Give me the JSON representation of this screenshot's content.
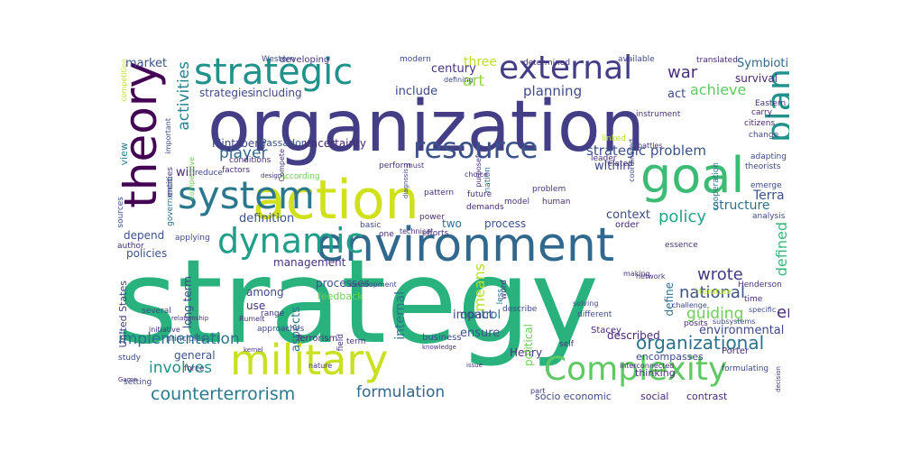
{
  "cloud": {
    "words": [
      {
        "text": "strategy",
        "color": "#2ab27e"
      },
      {
        "text": "organization",
        "color": "#433e85"
      },
      {
        "text": "environment",
        "color": "#31688e"
      },
      {
        "text": "action",
        "color": "#d0e11c"
      },
      {
        "text": "goal",
        "color": "#3cbb75"
      },
      {
        "text": "military",
        "color": "#c8e020"
      },
      {
        "text": "system",
        "color": "#2a788e"
      },
      {
        "text": "theory",
        "color": "#440154"
      },
      {
        "text": "strategic",
        "color": "#21918c"
      },
      {
        "text": "external",
        "color": "#433e85"
      },
      {
        "text": "resource",
        "color": "#3b528b"
      },
      {
        "text": "dynamic",
        "color": "#1f9e89"
      },
      {
        "text": "Complexity",
        "color": "#5ec962"
      },
      {
        "text": "plan",
        "color": "#21918c"
      },
      {
        "text": "counterterrorism",
        "color": "#2a788e"
      },
      {
        "text": "organizational",
        "color": "#2c728e"
      },
      {
        "text": "implementation",
        "color": "#2c728e"
      },
      {
        "text": "activities",
        "color": "#26828e"
      },
      {
        "text": "strategic problem",
        "color": "#3b528b"
      },
      {
        "text": "formulation",
        "color": "#31688e"
      },
      {
        "text": "involves",
        "color": "#21918c"
      },
      {
        "text": "national",
        "color": "#3b528b"
      },
      {
        "text": "achieve",
        "color": "#5ec962"
      },
      {
        "text": "player",
        "color": "#31688e"
      },
      {
        "text": "policy",
        "color": "#20a486"
      },
      {
        "text": "wrote",
        "color": "#443983"
      },
      {
        "text": "guiding",
        "color": "#6ece58"
      },
      {
        "text": "war",
        "color": "#472d7b"
      },
      {
        "text": "end",
        "color": "#482878"
      },
      {
        "text": "defined",
        "color": "#35b779"
      },
      {
        "text": "art",
        "color": "#90d743"
      },
      {
        "text": "Symbiotic",
        "color": "#31688e"
      },
      {
        "text": "planning",
        "color": "#3e4989"
      },
      {
        "text": "means",
        "color": "#b5de2b"
      },
      {
        "text": "market",
        "color": "#3b528b"
      },
      {
        "text": "structure",
        "color": "#2c728e"
      },
      {
        "text": "definition",
        "color": "#3b528b"
      },
      {
        "text": "Mintzberg",
        "color": "#3e4989"
      },
      {
        "text": "uncertainty",
        "color": "#482878"
      },
      {
        "text": "Passador",
        "color": "#3b528b"
      },
      {
        "text": "Terra",
        "color": "#3b528b"
      },
      {
        "text": "survival",
        "color": "#482878"
      },
      {
        "text": "strategies",
        "color": "#3e4989"
      },
      {
        "text": "including",
        "color": "#3e4989"
      },
      {
        "text": "act",
        "color": "#3e4989"
      },
      {
        "text": "include",
        "color": "#3e4989"
      },
      {
        "text": "three",
        "color": "#bddf26"
      },
      {
        "text": "century",
        "color": "#46327e"
      },
      {
        "text": "within",
        "color": "#3e4989"
      },
      {
        "text": "will",
        "color": "#482878"
      },
      {
        "text": "view",
        "color": "#26828e"
      },
      {
        "text": "context",
        "color": "#3e4989"
      },
      {
        "text": "two",
        "color": "#2c728e"
      },
      {
        "text": "process",
        "color": "#3b528b"
      },
      {
        "text": "depend",
        "color": "#3b528b"
      },
      {
        "text": "policies",
        "color": "#3b528b"
      },
      {
        "text": "management",
        "color": "#46327e"
      },
      {
        "text": "among",
        "color": "#3e4989"
      },
      {
        "text": "processes",
        "color": "#3b528b"
      },
      {
        "text": "feedback",
        "color": "#6ece58"
      },
      {
        "text": "use",
        "color": "#46327e"
      },
      {
        "text": "control",
        "color": "#2c728e"
      },
      {
        "text": "ensure",
        "color": "#3b528b"
      },
      {
        "text": "impact",
        "color": "#3e4989"
      },
      {
        "text": "business",
        "color": "#3e4989"
      },
      {
        "text": "Henry",
        "color": "#46327e"
      },
      {
        "text": "described",
        "color": "#482878"
      },
      {
        "text": "environmental",
        "color": "#3e4989"
      },
      {
        "text": "internal",
        "color": "#2c728e"
      },
      {
        "text": "aspects",
        "color": "#2c728e"
      },
      {
        "text": "long term",
        "color": "#3e4989"
      },
      {
        "text": "general",
        "color": "#3b528b"
      },
      {
        "text": "United States",
        "color": "#433e85"
      },
      {
        "text": "Terrorism",
        "color": "#472d7b"
      },
      {
        "text": "political",
        "color": "#6ece58"
      },
      {
        "text": "socio economic",
        "color": "#3e4989"
      },
      {
        "text": "social",
        "color": "#482878"
      },
      {
        "text": "contrast",
        "color": "#472d7b"
      },
      {
        "text": "define",
        "color": "#2c728e"
      },
      {
        "text": "order",
        "color": "#482878"
      },
      {
        "text": "Stacey",
        "color": "#472d7b"
      },
      {
        "text": "encompasses",
        "color": "#3e4989"
      },
      {
        "text": "thinking",
        "color": "#472d7b"
      },
      {
        "text": "Porter",
        "color": "#482878"
      },
      {
        "text": "developing",
        "color": "#46327e"
      },
      {
        "text": "Western",
        "color": "#3e4989"
      },
      {
        "text": "modern",
        "color": "#3e4989"
      },
      {
        "text": "determined",
        "color": "#46327e"
      },
      {
        "text": "available",
        "color": "#3e4989"
      },
      {
        "text": "translated",
        "color": "#482878"
      },
      {
        "text": "defining",
        "color": "#3e4989"
      },
      {
        "text": "Eastern",
        "color": "#46327e"
      },
      {
        "text": "carry",
        "color": "#482878"
      },
      {
        "text": "citizens",
        "color": "#482878"
      },
      {
        "text": "instrument",
        "color": "#46327e"
      },
      {
        "text": "change",
        "color": "#3e4989"
      },
      {
        "text": "leader",
        "color": "#472d7b"
      },
      {
        "text": "adapting",
        "color": "#3e4989"
      },
      {
        "text": "theorists",
        "color": "#3e4989"
      },
      {
        "text": "emerge",
        "color": "#3e4989"
      },
      {
        "text": "analysis",
        "color": "#3e4989"
      },
      {
        "text": "cooperation",
        "color": "#2c728e"
      },
      {
        "text": "conditions",
        "color": "#482878"
      },
      {
        "text": "factors",
        "color": "#482878"
      },
      {
        "text": "According",
        "color": "#6ece58"
      },
      {
        "text": "perform",
        "color": "#46327e"
      },
      {
        "text": "pattern",
        "color": "#46327e"
      },
      {
        "text": "future",
        "color": "#46327e"
      },
      {
        "text": "problem",
        "color": "#46327e"
      },
      {
        "text": "model",
        "color": "#46327e"
      },
      {
        "text": "human",
        "color": "#46327e"
      },
      {
        "text": "demands",
        "color": "#482878"
      },
      {
        "text": "power",
        "color": "#472d7b"
      },
      {
        "text": "efforts",
        "color": "#472d7b"
      },
      {
        "text": "basic",
        "color": "#3e4989"
      },
      {
        "text": "one",
        "color": "#482878"
      },
      {
        "text": "applying",
        "color": "#3e4989"
      },
      {
        "text": "government",
        "color": "#2c728e"
      },
      {
        "text": "author",
        "color": "#472d7b"
      },
      {
        "text": "sources",
        "color": "#3b528b"
      },
      {
        "text": "several",
        "color": "#3e4989"
      },
      {
        "text": "study",
        "color": "#3e4989"
      },
      {
        "text": "force",
        "color": "#46327e"
      },
      {
        "text": "setting",
        "color": "#3e4989"
      },
      {
        "text": "range",
        "color": "#46327e"
      },
      {
        "text": "approaches",
        "color": "#3e4989"
      },
      {
        "text": "field",
        "color": "#46327e"
      },
      {
        "text": "term",
        "color": "#46327e"
      },
      {
        "text": "word",
        "color": "#46327e"
      },
      {
        "text": "different",
        "color": "#3e4989"
      },
      {
        "text": "self",
        "color": "#46327e"
      },
      {
        "text": "posits",
        "color": "#482878"
      },
      {
        "text": "literature",
        "color": "#b5de2b"
      },
      {
        "text": "time",
        "color": "#482878"
      },
      {
        "text": "Henderson",
        "color": "#46327e"
      },
      {
        "text": "formulating",
        "color": "#3e4989"
      },
      {
        "text": "specific",
        "color": "#3e4989"
      },
      {
        "text": "subsystems",
        "color": "#3e4989"
      },
      {
        "text": "essence",
        "color": "#46327e"
      },
      {
        "text": "network",
        "color": "#46327e"
      },
      {
        "text": "making",
        "color": "#46327e"
      },
      {
        "text": "solving",
        "color": "#3e4989"
      },
      {
        "text": "challenge",
        "color": "#3e4989"
      },
      {
        "text": "principles",
        "color": "#3b528b"
      },
      {
        "text": "initiative",
        "color": "#46327e"
      },
      {
        "text": "relationship",
        "color": "#46327e"
      },
      {
        "text": "Rumelt",
        "color": "#46327e"
      },
      {
        "text": "Game",
        "color": "#46327e"
      },
      {
        "text": "design",
        "color": "#46327e"
      },
      {
        "text": "must",
        "color": "#46327e"
      },
      {
        "text": "diagnosis",
        "color": "#3e4989"
      },
      {
        "text": "nation",
        "color": "#2c728e"
      },
      {
        "text": "choice",
        "color": "#46327e"
      },
      {
        "text": "purposeful",
        "color": "#46327e"
      },
      {
        "text": "Compete",
        "color": "#46327e"
      },
      {
        "text": "related",
        "color": "#46327e"
      },
      {
        "text": "linked",
        "color": "#b5de2b"
      },
      {
        "text": "battles",
        "color": "#46327e"
      },
      {
        "text": "coordinated",
        "color": "#3e4989"
      },
      {
        "text": "competition",
        "color": "#c8e020"
      },
      {
        "text": "entities",
        "color": "#46327e"
      },
      {
        "text": "reduce",
        "color": "#3e4989"
      },
      {
        "text": "important",
        "color": "#3e4989"
      },
      {
        "text": "competitive",
        "color": "#6ece58"
      },
      {
        "text": "technical",
        "color": "#46327e"
      },
      {
        "text": "less",
        "color": "#2c728e"
      },
      {
        "text": "describe",
        "color": "#3e4989"
      },
      {
        "text": "development",
        "color": "#3e4989"
      },
      {
        "text": "interconnected",
        "color": "#46327e"
      },
      {
        "text": "decision",
        "color": "#46327e"
      },
      {
        "text": "nature",
        "color": "#46327e"
      },
      {
        "text": "issue",
        "color": "#46327e"
      },
      {
        "text": "part",
        "color": "#46327e"
      },
      {
        "text": "knowledge",
        "color": "#46327e"
      },
      {
        "text": "kernel",
        "color": "#46327e"
      }
    ]
  }
}
